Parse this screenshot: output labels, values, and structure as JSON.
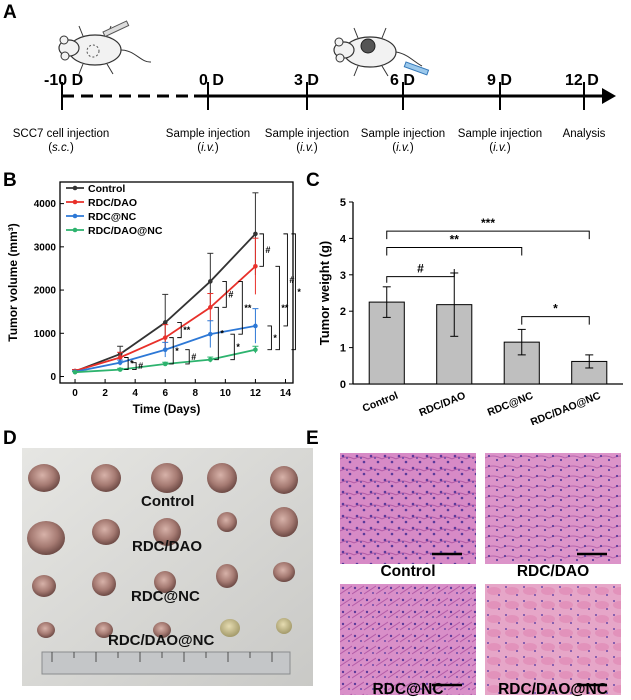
{
  "panels": {
    "a": "A",
    "b": "B",
    "c": "C",
    "d": "D",
    "e": "E"
  },
  "timeline": {
    "days": [
      "-10 D",
      "0 D",
      "3 D",
      "6 D",
      "9 D",
      "12 D"
    ],
    "events": [
      {
        "line1": "SCC7 cell injection",
        "route": "s.c."
      },
      {
        "line1": "Sample injection",
        "route": "i.v."
      },
      {
        "line1": "Sample injection",
        "route": "i.v."
      },
      {
        "line1": "Sample injection",
        "route": "i.v."
      },
      {
        "line1": "Sample injection",
        "route": "i.v."
      },
      {
        "line1": "Analysis",
        "route": ""
      }
    ]
  },
  "chart_data": [
    {
      "type": "line",
      "xlabel": "Time (Days)",
      "ylabel": "Tumor volume (mm³)",
      "xlim": [
        -1,
        14.5
      ],
      "ylim": [
        -150,
        4500
      ],
      "xticks": [
        0,
        2,
        4,
        6,
        8,
        10,
        12,
        14
      ],
      "yticks": [
        0,
        1000,
        2000,
        3000,
        4000
      ],
      "x": [
        0,
        3,
        6,
        9,
        12
      ],
      "series": [
        {
          "name": "Control",
          "color": "#333333",
          "values": [
            120,
            520,
            1250,
            2200,
            3300
          ],
          "err": [
            40,
            180,
            650,
            650,
            950
          ]
        },
        {
          "name": "RDC/DAO",
          "color": "#e8302a",
          "values": [
            130,
            440,
            900,
            1600,
            2550
          ],
          "err": [
            30,
            120,
            300,
            320,
            650
          ]
        },
        {
          "name": "RDC@NC",
          "color": "#2d78d6",
          "values": [
            110,
            320,
            620,
            980,
            1170
          ],
          "err": [
            20,
            60,
            170,
            310,
            400
          ]
        },
        {
          "name": "RDC/DAO@NC",
          "color": "#2db36e",
          "values": [
            100,
            160,
            290,
            390,
            620
          ],
          "err": [
            15,
            30,
            40,
            60,
            80
          ]
        }
      ],
      "brackets": [
        "*",
        "#",
        "*",
        "**",
        "#",
        "*",
        "#",
        "*",
        "**",
        "#",
        "*",
        "**",
        "#",
        "*",
        "**",
        "**"
      ]
    },
    {
      "type": "bar",
      "ylabel": "Tumor weight (g)",
      "ylim": [
        0,
        5
      ],
      "yticks": [
        0,
        1,
        2,
        3,
        4,
        5
      ],
      "categories": [
        "Control",
        "RDC/DAO",
        "RDC@NC",
        "RDC/DAO@NC"
      ],
      "values": [
        2.25,
        2.18,
        1.15,
        0.62
      ],
      "err": [
        0.42,
        0.87,
        0.35,
        0.18
      ],
      "color": "#bfbfbf",
      "significance": [
        {
          "from": 0,
          "to": 1,
          "label": "#"
        },
        {
          "from": 0,
          "to": 2,
          "label": "**"
        },
        {
          "from": 0,
          "to": 3,
          "label": "***"
        },
        {
          "from": 2,
          "to": 3,
          "label": "*"
        }
      ]
    }
  ],
  "photo": {
    "labels": [
      "Control",
      "RDC/DAO",
      "RDC@NC",
      "RDC/DAO@NC"
    ]
  },
  "histology": {
    "labels": [
      "Control",
      "RDC/DAO",
      "RDC@NC",
      "RDC/DAO@NC"
    ]
  }
}
